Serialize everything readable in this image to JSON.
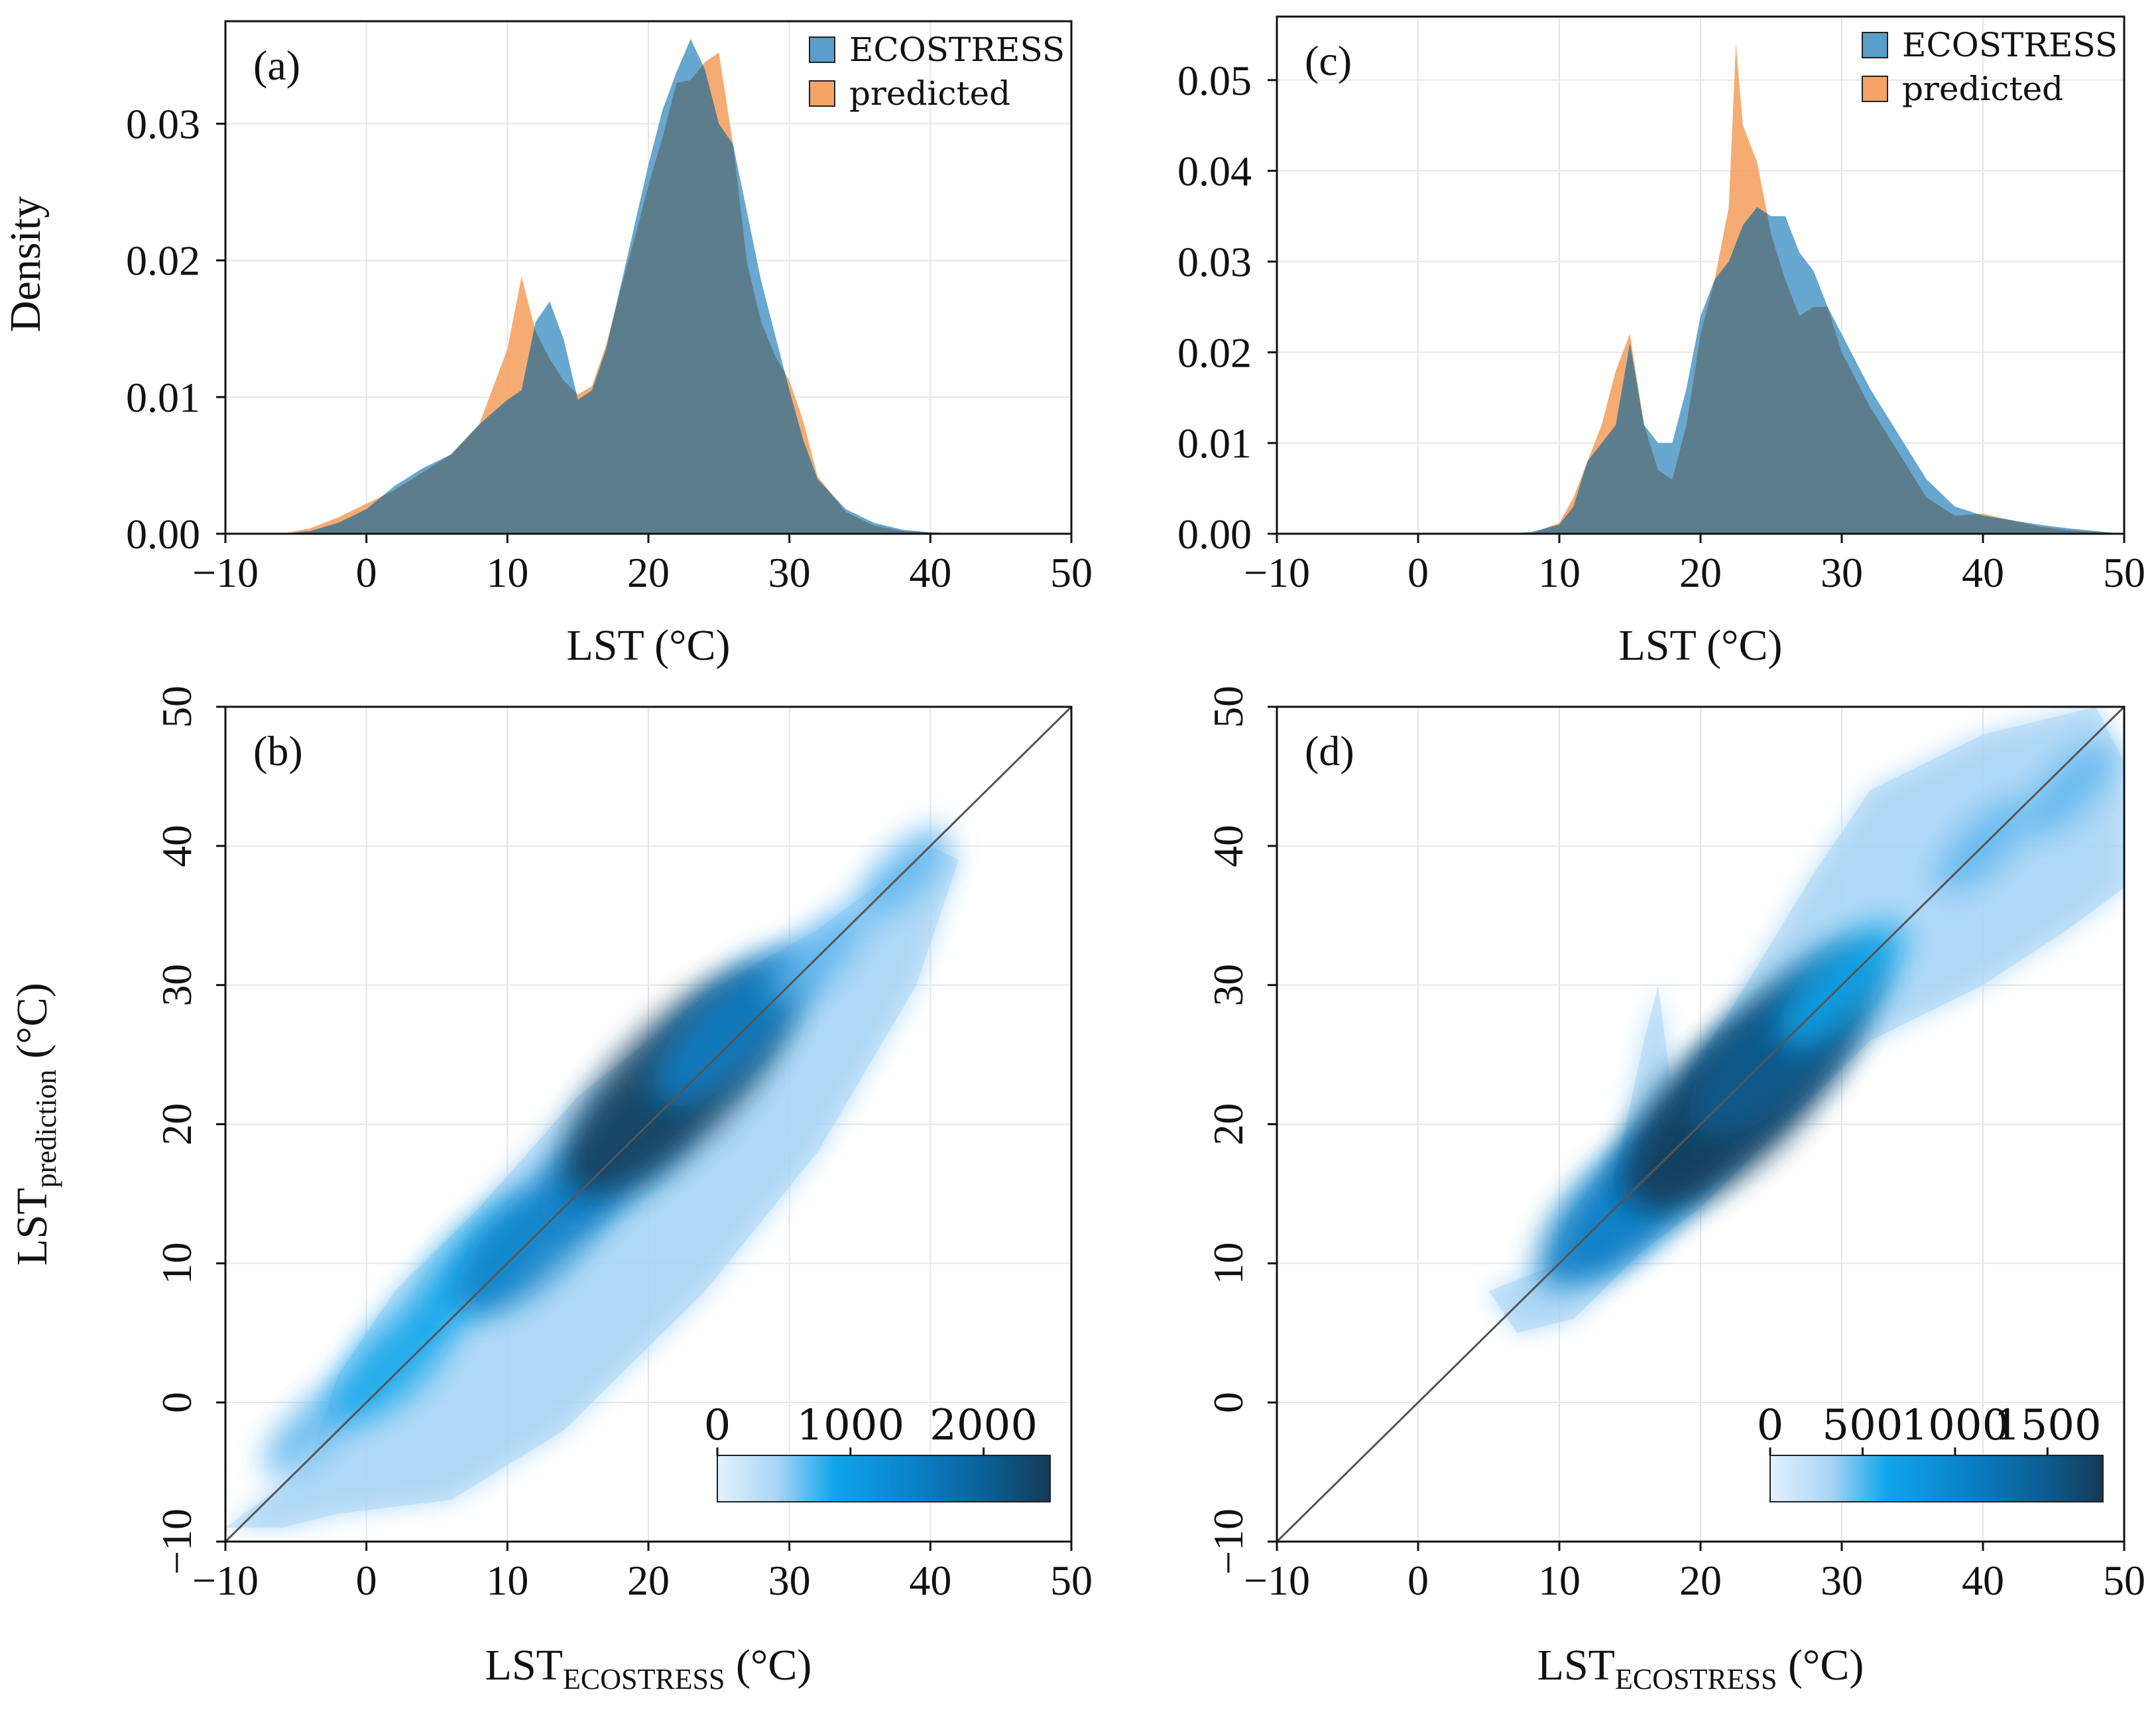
{
  "colors": {
    "ecostress": "#5a9fcc",
    "predicted": "#f4a466",
    "overlap": "#5c7e8c",
    "grid": "#e6e6e6",
    "identity_line": "#555555",
    "colormap": [
      "#e3f1fc",
      "#a9d5f5",
      "#5fb6ee",
      "#11a5ea",
      "#0a7fc6",
      "#0b5d92",
      "#163a57"
    ]
  },
  "chart_data": [
    {
      "id": "a",
      "panel_label": "(a)",
      "type": "area",
      "xlabel": "LST (°C)",
      "ylabel": "Density",
      "xlim": [
        -10,
        50
      ],
      "ylim": [
        0,
        0.0375
      ],
      "xticks": [
        -10,
        0,
        10,
        20,
        30,
        40,
        50
      ],
      "xtick_labels": [
        "−10",
        "0",
        "10",
        "20",
        "30",
        "40",
        "50"
      ],
      "yticks": [
        0,
        0.01,
        0.02,
        0.03
      ],
      "ytick_labels": [
        "0.00",
        "0.01",
        "0.02",
        "0.03"
      ],
      "grid": true,
      "legend": "top-right",
      "series": [
        {
          "name": "ECOSTRESS",
          "x": [
            -10,
            -6,
            -4,
            -2,
            0,
            2,
            4,
            6,
            8,
            10,
            11,
            12,
            13,
            14,
            15,
            16,
            17,
            18,
            19,
            20,
            21,
            22,
            23,
            24,
            25,
            26,
            27,
            28,
            29,
            30,
            31,
            32,
            34,
            36,
            38,
            40,
            42,
            50
          ],
          "y": [
            0,
            0,
            0.0002,
            0.0008,
            0.0018,
            0.0035,
            0.0048,
            0.0058,
            0.008,
            0.0098,
            0.0105,
            0.0155,
            0.017,
            0.0142,
            0.0098,
            0.0105,
            0.0135,
            0.018,
            0.0225,
            0.027,
            0.031,
            0.0338,
            0.0362,
            0.034,
            0.03,
            0.0285,
            0.0235,
            0.0185,
            0.0145,
            0.0105,
            0.0068,
            0.004,
            0.0018,
            0.0008,
            0.0003,
            0.0001,
            0,
            0
          ]
        },
        {
          "name": "predicted",
          "x": [
            -10,
            -6,
            -4,
            -2,
            0,
            2,
            4,
            6,
            8,
            10,
            11,
            12,
            13,
            14,
            15,
            16,
            17,
            18,
            19,
            20,
            21,
            22,
            23,
            24,
            25,
            26,
            27,
            28,
            29,
            30,
            31,
            32,
            34,
            36,
            38,
            40,
            42,
            50
          ],
          "y": [
            0,
            0,
            0.0004,
            0.0012,
            0.0022,
            0.0032,
            0.0045,
            0.0058,
            0.008,
            0.0135,
            0.0188,
            0.0148,
            0.0128,
            0.0112,
            0.0102,
            0.0108,
            0.0138,
            0.0178,
            0.0215,
            0.0255,
            0.029,
            0.033,
            0.0332,
            0.0345,
            0.0352,
            0.0285,
            0.0198,
            0.0155,
            0.013,
            0.0112,
            0.0082,
            0.0042,
            0.0016,
            0.0006,
            0.0002,
            0.0001,
            0,
            0
          ]
        }
      ]
    },
    {
      "id": "c",
      "panel_label": "(c)",
      "type": "area",
      "xlabel": "LST (°C)",
      "ylabel": "",
      "xlim": [
        -10,
        50
      ],
      "ylim": [
        0,
        0.057
      ],
      "xticks": [
        -10,
        0,
        10,
        20,
        30,
        40,
        50
      ],
      "xtick_labels": [
        "−10",
        "0",
        "10",
        "20",
        "30",
        "40",
        "50"
      ],
      "yticks": [
        0,
        0.01,
        0.02,
        0.03,
        0.04,
        0.05
      ],
      "ytick_labels": [
        "0.00",
        "0.01",
        "0.02",
        "0.03",
        "0.04",
        "0.05"
      ],
      "grid": true,
      "legend": "top-right",
      "series": [
        {
          "name": "ECOSTRESS",
          "x": [
            -10,
            6,
            8,
            10,
            11,
            12,
            13,
            14,
            15,
            16,
            17,
            18,
            19,
            20,
            21,
            22,
            23,
            24,
            25,
            26,
            27,
            28,
            29,
            30,
            31,
            32,
            34,
            36,
            38,
            40,
            42,
            44,
            46,
            48,
            50
          ],
          "y": [
            0,
            0,
            0.0002,
            0.001,
            0.003,
            0.008,
            0.01,
            0.012,
            0.021,
            0.012,
            0.01,
            0.01,
            0.016,
            0.024,
            0.028,
            0.03,
            0.034,
            0.036,
            0.035,
            0.035,
            0.031,
            0.029,
            0.025,
            0.022,
            0.019,
            0.016,
            0.011,
            0.006,
            0.003,
            0.002,
            0.0015,
            0.001,
            0.0006,
            0.0003,
            0
          ]
        },
        {
          "name": "predicted",
          "x": [
            -10,
            8,
            10,
            11,
            12,
            13,
            14,
            15,
            16,
            17,
            18,
            19,
            20,
            21,
            22,
            22.5,
            23,
            24,
            25,
            26,
            27,
            28,
            29,
            30,
            31,
            32,
            34,
            36,
            38,
            40,
            42,
            44,
            46,
            48,
            50
          ],
          "y": [
            0,
            0,
            0.0012,
            0.004,
            0.008,
            0.012,
            0.018,
            0.022,
            0.012,
            0.007,
            0.006,
            0.012,
            0.022,
            0.028,
            0.036,
            0.054,
            0.045,
            0.041,
            0.033,
            0.028,
            0.024,
            0.025,
            0.025,
            0.02,
            0.017,
            0.014,
            0.009,
            0.004,
            0.002,
            0.0022,
            0.0015,
            0.0008,
            0.0004,
            0.0002,
            0
          ]
        }
      ]
    },
    {
      "id": "b",
      "panel_label": "(b)",
      "type": "heatmap",
      "xlabel": "LST",
      "xlabel_sub": "ECOSTRESS",
      "xlabel_unit": " (°C)",
      "ylabel": "LST",
      "ylabel_sub": "prediction",
      "ylabel_unit": " (°C)",
      "xlim": [
        -10,
        50
      ],
      "ylim": [
        -10,
        50
      ],
      "xticks": [
        -10,
        0,
        10,
        20,
        30,
        40,
        50
      ],
      "xtick_labels": [
        "−10",
        "0",
        "10",
        "20",
        "30",
        "40",
        "50"
      ],
      "yticks": [
        -10,
        0,
        10,
        20,
        30,
        40,
        50
      ],
      "ytick_labels": [
        "−10",
        "0",
        "10",
        "20",
        "30",
        "40",
        "50"
      ],
      "grid": true,
      "identity_line": [
        [
          -10,
          -10
        ],
        [
          50,
          50
        ]
      ],
      "colorbar": {
        "range": [
          0,
          2500
        ],
        "ticks": [
          0,
          1000,
          2000
        ],
        "tick_labels": [
          "0",
          "1000",
          "2000"
        ],
        "placement": "bottom-right"
      },
      "density_envelope": [
        [
          -10,
          -9
        ],
        [
          -6,
          -6
        ],
        [
          -4,
          -4
        ],
        [
          -2,
          2
        ],
        [
          2,
          8
        ],
        [
          8,
          14
        ],
        [
          15,
          22
        ],
        [
          25,
          30
        ],
        [
          32,
          34
        ],
        [
          40,
          40
        ],
        [
          42,
          39
        ],
        [
          39,
          30
        ],
        [
          32,
          18
        ],
        [
          24,
          8
        ],
        [
          14,
          -2
        ],
        [
          6,
          -7
        ],
        [
          -2,
          -8
        ],
        [
          -6,
          -9
        ]
      ],
      "density_cores": [
        [
          -4,
          -2,
          1
        ],
        [
          2,
          3,
          2
        ],
        [
          8,
          10,
          2
        ],
        [
          12,
          12,
          3
        ],
        [
          18,
          18,
          3
        ],
        [
          22,
          23,
          5
        ],
        [
          26,
          27,
          3
        ],
        [
          32,
          32,
          1
        ],
        [
          38,
          38,
          1
        ]
      ]
    },
    {
      "id": "d",
      "panel_label": "(d)",
      "type": "heatmap",
      "xlabel": "LST",
      "xlabel_sub": "ECOSTRESS",
      "xlabel_unit": " (°C)",
      "ylabel": "",
      "xlim": [
        -10,
        50
      ],
      "ylim": [
        -10,
        50
      ],
      "xticks": [
        -10,
        0,
        10,
        20,
        30,
        40,
        50
      ],
      "xtick_labels": [
        "−10",
        "0",
        "10",
        "20",
        "30",
        "40",
        "50"
      ],
      "yticks": [
        -10,
        0,
        10,
        20,
        30,
        40,
        50
      ],
      "ytick_labels": [
        "−10",
        "0",
        "10",
        "20",
        "30",
        "40",
        "50"
      ],
      "grid": true,
      "identity_line": [
        [
          -10,
          -10
        ],
        [
          50,
          50
        ]
      ],
      "colorbar": {
        "range": [
          0,
          1800
        ],
        "ticks": [
          0,
          500,
          1000,
          1500
        ],
        "tick_labels": [
          "0",
          "500",
          "1000",
          "1500"
        ],
        "placement": "bottom-right"
      },
      "density_envelope": [
        [
          5,
          8
        ],
        [
          10,
          10
        ],
        [
          13,
          12
        ],
        [
          16,
          26
        ],
        [
          17,
          30
        ],
        [
          18,
          22
        ],
        [
          22,
          28
        ],
        [
          28,
          38
        ],
        [
          32,
          44
        ],
        [
          40,
          48
        ],
        [
          48,
          50
        ],
        [
          50,
          46
        ],
        [
          50,
          37
        ],
        [
          46,
          34
        ],
        [
          40,
          30
        ],
        [
          32,
          26
        ],
        [
          26,
          20
        ],
        [
          20,
          14
        ],
        [
          16,
          11
        ],
        [
          11,
          6
        ],
        [
          7,
          5
        ]
      ],
      "density_cores": [
        [
          14,
          14,
          3
        ],
        [
          16,
          15,
          3
        ],
        [
          21,
          21,
          4
        ],
        [
          23,
          22,
          5
        ],
        [
          26,
          26,
          4
        ],
        [
          30,
          30,
          2
        ],
        [
          40,
          40,
          1
        ],
        [
          46,
          44,
          1
        ]
      ]
    }
  ]
}
